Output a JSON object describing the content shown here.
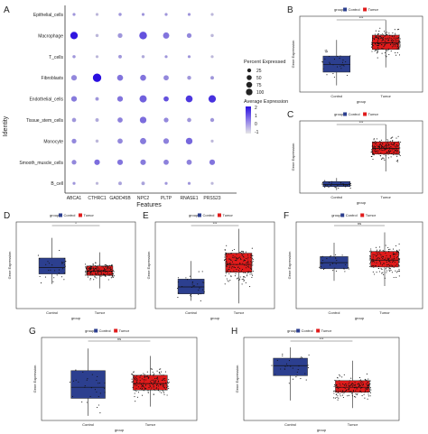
{
  "panels": {
    "A": "A",
    "B": "B",
    "C": "C",
    "D": "D",
    "E": "E",
    "F": "F",
    "G": "G",
    "H": "H"
  },
  "dotplot": {
    "ylabel": "Identity",
    "xlabel": "Features",
    "cell_types": [
      "Epithelial_cells",
      "Macrophage",
      "T_cells",
      "Fibroblasts",
      "Endothelial_cells",
      "Tissue_stem_cells",
      "Monocyte",
      "Smooth_muscle_cells",
      "B_cell"
    ],
    "features": [
      "ABCA1",
      "CTHRC1",
      "GADD45B",
      "NPC2",
      "PLTP",
      "RNASE1",
      "PRSS23"
    ],
    "size_legend_title": "Percent Expressed",
    "size_legend_labels": [
      "25",
      "50",
      "75",
      "100"
    ],
    "color_legend_title": "Average Expression",
    "color_legend_labels": [
      "2",
      "1",
      "0",
      "-1"
    ],
    "color_low": "#d9d9d9",
    "color_high": "#2a0fe0"
  },
  "boxplots": {
    "legend_title": "group",
    "control_label": "Control",
    "tumor_label": "Tumor",
    "control_color": "#2c3f8f",
    "tumor_color": "#e01b1b",
    "xlabel": "group",
    "ylabel": "Gene Expression",
    "sig": {
      "B": "***",
      "C": "***",
      "D": "*",
      "E": "***",
      "F": "ns",
      "G": "ns",
      "H": "***"
    }
  },
  "chart_data": [
    {
      "panel": "A",
      "type": "heatmap",
      "xlabel": "Features",
      "ylabel": "Identity",
      "x": [
        "ABCA1",
        "CTHRC1",
        "GADD45B",
        "NPC2",
        "PLTP",
        "RNASE1",
        "PRSS23"
      ],
      "y": [
        "Epithelial_cells",
        "Macrophage",
        "T_cells",
        "Fibroblasts",
        "Endothelial_cells",
        "Tissue_stem_cells",
        "Monocyte",
        "Smooth_muscle_cells",
        "B_cell"
      ],
      "pct_expressed": [
        [
          2,
          2,
          3,
          2,
          2,
          2,
          2
        ],
        [
          55,
          3,
          15,
          60,
          35,
          15,
          3
        ],
        [
          3,
          2,
          5,
          3,
          2,
          2,
          2
        ],
        [
          25,
          75,
          30,
          30,
          20,
          8,
          5
        ],
        [
          25,
          5,
          25,
          50,
          20,
          45,
          55
        ],
        [
          10,
          5,
          20,
          40,
          15,
          10,
          8
        ],
        [
          15,
          3,
          20,
          35,
          25,
          40,
          2
        ],
        [
          15,
          25,
          25,
          25,
          20,
          20,
          25
        ],
        [
          2,
          2,
          5,
          5,
          2,
          2,
          2
        ]
      ],
      "avg_expression": [
        [
          0,
          -0.5,
          0,
          0,
          0,
          0,
          -0.5
        ],
        [
          1.9,
          -0.5,
          0,
          1,
          0.5,
          0.2,
          -0.5
        ],
        [
          0,
          -0.5,
          0,
          -0.3,
          0,
          0,
          -0.5
        ],
        [
          0.2,
          2,
          0.5,
          0.5,
          0.2,
          0,
          0
        ],
        [
          0.4,
          0,
          0.5,
          0.8,
          1,
          1.4,
          1.5
        ],
        [
          0,
          -0.3,
          0.3,
          0.6,
          0.2,
          0,
          0
        ],
        [
          0.2,
          -0.5,
          0.2,
          0.4,
          0.3,
          0.7,
          -0.5
        ],
        [
          0.2,
          0.6,
          0.5,
          0.4,
          0.3,
          0.3,
          0.5
        ],
        [
          0,
          -0.5,
          -0.2,
          -0.2,
          0,
          0,
          -0.5
        ]
      ]
    },
    {
      "panel": "B",
      "type": "box",
      "categories": [
        "Control",
        "Tumor"
      ],
      "box": [
        [
          2.1,
          2.9,
          3.8
        ],
        [
          4.5,
          5.2,
          6.0
        ]
      ],
      "whisker": [
        [
          0.7,
          5.5
        ],
        [
          2.6,
          7.6
        ]
      ],
      "ylim": [
        0,
        8
      ]
    },
    {
      "panel": "C",
      "type": "box",
      "categories": [
        "Control",
        "Tumor"
      ],
      "box": [
        [
          0.9,
          1.2,
          1.6
        ],
        [
          5.4,
          6.2,
          7.1
        ]
      ],
      "whisker": [
        [
          0.4,
          2.1
        ],
        [
          3.0,
          9.5
        ]
      ],
      "ylim": [
        0,
        10
      ]
    },
    {
      "panel": "D",
      "type": "box",
      "categories": [
        "Control",
        "Tumor"
      ],
      "box": [
        [
          4.8,
          5.7,
          7.0
        ],
        [
          4.6,
          5.2,
          5.9
        ]
      ],
      "whisker": [
        [
          3.4,
          9.8
        ],
        [
          2.8,
          7.8
        ]
      ],
      "ylim": [
        0,
        12
      ]
    },
    {
      "panel": "E",
      "type": "box",
      "categories": [
        "Control",
        "Tumor"
      ],
      "box": [
        [
          1.7,
          2.5,
          3.4
        ],
        [
          4.2,
          5.1,
          6.4
        ]
      ],
      "whisker": [
        [
          0.9,
          5.5
        ],
        [
          0.6,
          9.2
        ]
      ],
      "ylim": [
        0,
        10
      ]
    },
    {
      "panel": "F",
      "type": "box",
      "categories": [
        "Control",
        "Tumor"
      ],
      "box": [
        [
          4.6,
          5.3,
          6.0
        ],
        [
          4.8,
          5.6,
          6.6
        ]
      ],
      "whisker": [
        [
          3.2,
          7.6
        ],
        [
          2.6,
          8.8
        ]
      ],
      "ylim": [
        0,
        10
      ]
    },
    {
      "panel": "G",
      "type": "box",
      "categories": [
        "Control",
        "Tumor"
      ],
      "box": [
        [
          2.4,
          3.6,
          5.4
        ],
        [
          3.3,
          4.0,
          4.9
        ]
      ],
      "whisker": [
        [
          0.5,
          7.8
        ],
        [
          1.5,
          7.0
        ]
      ],
      "ylim": [
        0,
        9
      ]
    },
    {
      "panel": "H",
      "type": "box",
      "categories": [
        "Control",
        "Tumor"
      ],
      "box": [
        [
          5.4,
          6.6,
          7.5
        ],
        [
          3.4,
          4.0,
          4.8
        ]
      ],
      "whisker": [
        [
          2.4,
          8.8
        ],
        [
          1.5,
          7.2
        ]
      ],
      "ylim": [
        0,
        10
      ]
    }
  ]
}
